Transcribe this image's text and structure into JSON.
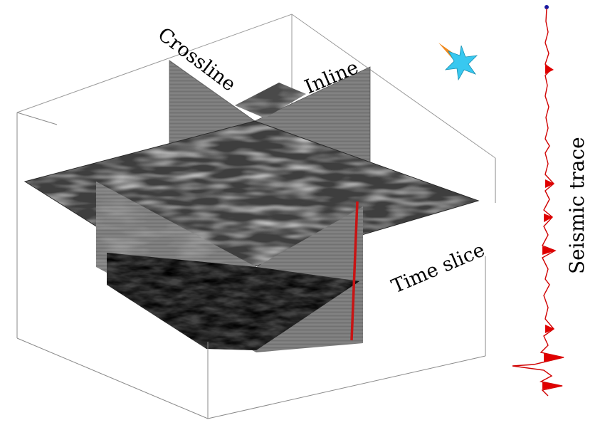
{
  "labels": {
    "crossline": "Crossline",
    "inline": "Inline",
    "time_slice": "Time slice",
    "seismic_trace": "Seismic trace"
  },
  "colors": {
    "trace_line": "#d00000",
    "trace_fill": "#e00000",
    "well_marker": "#c81414",
    "panel_gray": "#7d7d7d",
    "compass_star": "#38c8f0",
    "compass_needle": "#f08a1e"
  },
  "icons": [
    "compass-star-icon"
  ]
}
